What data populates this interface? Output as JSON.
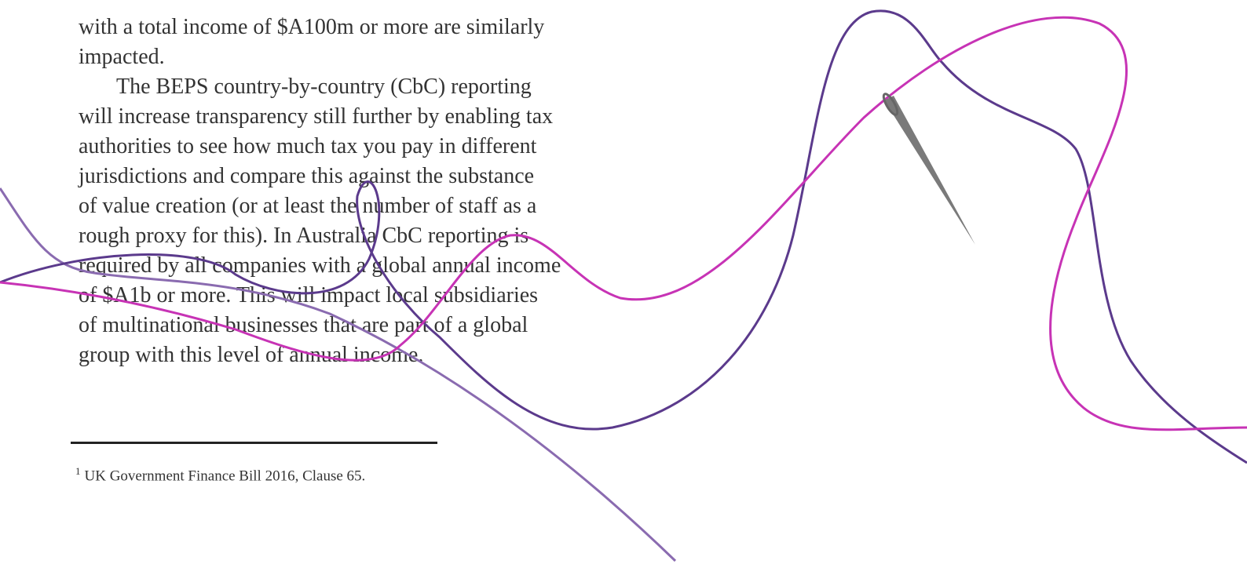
{
  "paragraphs": [
    {
      "lines": [
        "with a total income of $A100m or more are similarly",
        "impacted."
      ]
    },
    {
      "lines": [
        "The BEPS country-by-country (CbC) reporting",
        "will increase transparency still further by enabling tax",
        "authorities to see how much tax you pay in different",
        "jurisdictions and compare this against the substance",
        "of value creation (or at least the number of staff as a",
        "rough proxy for this). In Australia CbC reporting is",
        "required by all companies with a global annual income",
        "of $A1b or more. This will impact local subsidiaries",
        "of multinational businesses that are part of a global",
        "group with this level of annual income."
      ]
    }
  ],
  "footnote": {
    "marker": "1",
    "text": "UK Government Finance Bill 2016, Clause 65."
  }
}
